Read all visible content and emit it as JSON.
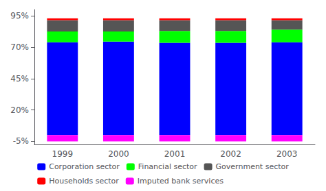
{
  "chart_data": {
    "type": "bar",
    "stacked": true,
    "categories": [
      "1999",
      "2000",
      "2001",
      "2002",
      "2003"
    ],
    "series": [
      {
        "name": "Corporation sector",
        "color": "#0000ff",
        "values": [
          74.0,
          74.5,
          73.5,
          73.5,
          74.0
        ]
      },
      {
        "name": "Financial sector",
        "color": "#00ff00",
        "values": [
          8.5,
          8.0,
          9.5,
          9.5,
          10.0
        ]
      },
      {
        "name": "Government sector",
        "color": "#555555",
        "values": [
          9.0,
          9.0,
          8.5,
          8.5,
          7.5
        ]
      },
      {
        "name": "Households sector",
        "color": "#ff0000",
        "values": [
          1.5,
          1.5,
          1.5,
          1.5,
          1.5
        ]
      },
      {
        "name": "Imputed bank services",
        "color": "#ff00ff",
        "values": [
          -5.0,
          -5.0,
          -5.0,
          -5.0,
          -5.0
        ]
      }
    ],
    "ylim": [
      -7.5,
      100
    ],
    "yticks": [
      {
        "value": -5,
        "label": "-5%"
      },
      {
        "value": 20,
        "label": "20%"
      },
      {
        "value": 45,
        "label": "45%"
      },
      {
        "value": 70,
        "label": "70%"
      },
      {
        "value": 95,
        "label": "95%"
      }
    ],
    "grid": false,
    "legend": "bottom"
  }
}
